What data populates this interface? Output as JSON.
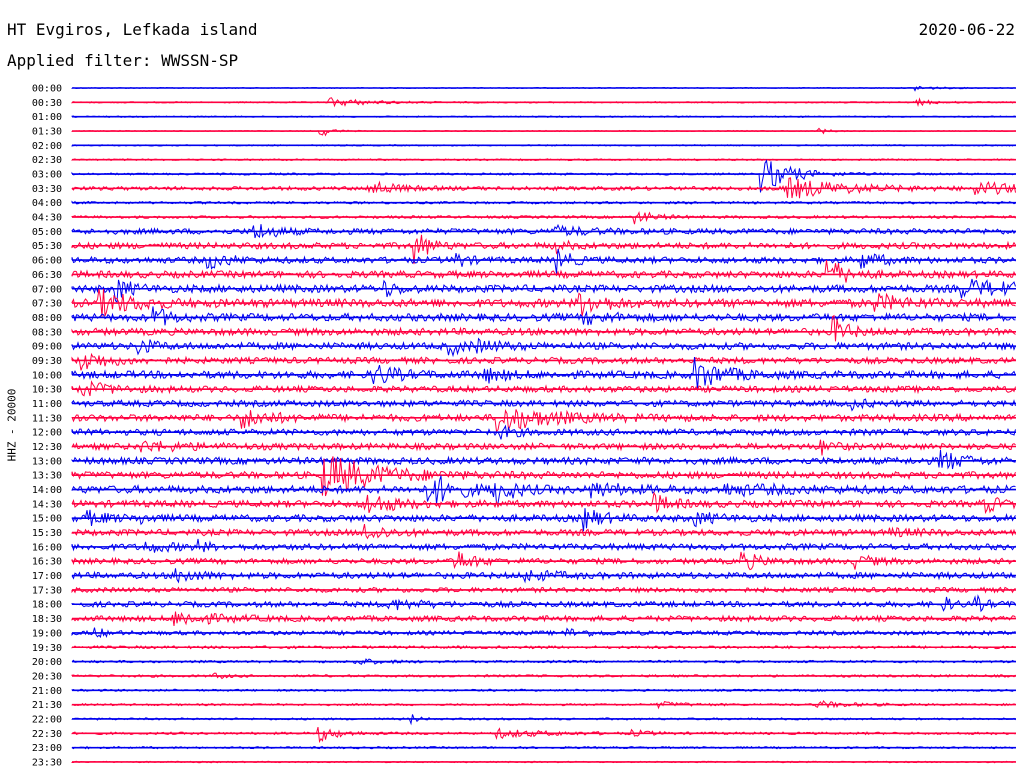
{
  "header": {
    "station": "HT Evgiros, Lefkada island",
    "date": "2020-06-22",
    "filter": "Applied filter: WWSSN-SP",
    "channel": "HHZ - 20000"
  },
  "colors": {
    "even": "#0000ee",
    "odd": "#ff0040"
  },
  "chart_data": {
    "type": "line",
    "title": "HT Evgiros, Lefkada island",
    "xlabel": "",
    "ylabel": "HHZ - 20000",
    "trace_labels": [
      "00:00",
      "00:30",
      "01:00",
      "01:30",
      "02:00",
      "02:30",
      "03:00",
      "03:30",
      "04:00",
      "04:30",
      "05:00",
      "05:30",
      "06:00",
      "06:30",
      "07:00",
      "07:30",
      "08:00",
      "08:30",
      "09:00",
      "09:30",
      "10:00",
      "10:30",
      "11:00",
      "11:30",
      "12:00",
      "12:30",
      "13:00",
      "13:30",
      "14:00",
      "14:30",
      "15:00",
      "15:30",
      "16:00",
      "16:30",
      "17:00",
      "17:30",
      "18:00",
      "18:30",
      "19:00",
      "19:30",
      "20:00",
      "20:30",
      "21:00",
      "21:30",
      "22:00",
      "22:30",
      "23:00",
      "23:30"
    ],
    "trace_minutes": 30,
    "noise_level": [
      0.15,
      0.2,
      0.2,
      0.15,
      0.2,
      0.25,
      0.3,
      0.55,
      0.35,
      0.4,
      0.8,
      0.9,
      0.9,
      1.0,
      1.1,
      1.2,
      1.1,
      1.0,
      1.0,
      0.9,
      1.1,
      0.9,
      0.9,
      1.0,
      0.9,
      0.9,
      1.0,
      1.0,
      1.1,
      1.0,
      1.0,
      0.9,
      0.9,
      0.8,
      0.9,
      0.7,
      0.8,
      0.8,
      0.6,
      0.4,
      0.35,
      0.35,
      0.3,
      0.3,
      0.3,
      0.35,
      0.3,
      0.2
    ],
    "events": [
      {
        "trace": 0,
        "minute": 26.8,
        "amp": 0.4,
        "dur": 0.5
      },
      {
        "trace": 1,
        "minute": 8.2,
        "amp": 0.6,
        "dur": 1.2
      },
      {
        "trace": 1,
        "minute": 26.8,
        "amp": 0.5,
        "dur": 0.5
      },
      {
        "trace": 3,
        "minute": 7.9,
        "amp": 0.9,
        "dur": 0.3
      },
      {
        "trace": 3,
        "minute": 23.7,
        "amp": 0.5,
        "dur": 0.3
      },
      {
        "trace": 6,
        "minute": 21.9,
        "amp": 2.6,
        "dur": 0.9
      },
      {
        "trace": 7,
        "minute": 9.4,
        "amp": 1.1,
        "dur": 0.8
      },
      {
        "trace": 7,
        "minute": 22.6,
        "amp": 1.5,
        "dur": 1.8
      },
      {
        "trace": 7,
        "minute": 28.7,
        "amp": 1.0,
        "dur": 1.2
      },
      {
        "trace": 9,
        "minute": 17.9,
        "amp": 0.9,
        "dur": 0.6
      },
      {
        "trace": 10,
        "minute": 5.8,
        "amp": 1.2,
        "dur": 0.6
      },
      {
        "trace": 10,
        "minute": 15.3,
        "amp": 0.6,
        "dur": 1.0
      },
      {
        "trace": 11,
        "minute": 10.9,
        "amp": 2.3,
        "dur": 0.4
      },
      {
        "trace": 11,
        "minute": 15.3,
        "amp": 0.8,
        "dur": 0.4
      },
      {
        "trace": 12,
        "minute": 4.3,
        "amp": 1.1,
        "dur": 0.6
      },
      {
        "trace": 12,
        "minute": 12.2,
        "amp": 1.1,
        "dur": 0.3
      },
      {
        "trace": 12,
        "minute": 15.4,
        "amp": 1.6,
        "dur": 0.4
      },
      {
        "trace": 12,
        "minute": 25.0,
        "amp": 1.2,
        "dur": 0.6
      },
      {
        "trace": 13,
        "minute": 24.0,
        "amp": 2.4,
        "dur": 0.5
      },
      {
        "trace": 14,
        "minute": 1.4,
        "amp": 1.6,
        "dur": 0.4
      },
      {
        "trace": 14,
        "minute": 9.9,
        "amp": 1.0,
        "dur": 0.4
      },
      {
        "trace": 14,
        "minute": 28.3,
        "amp": 1.0,
        "dur": 2.0
      },
      {
        "trace": 15,
        "minute": 0.9,
        "amp": 1.6,
        "dur": 1.0
      },
      {
        "trace": 15,
        "minute": 16.1,
        "amp": 1.7,
        "dur": 0.7
      },
      {
        "trace": 15,
        "minute": 25.5,
        "amp": 1.0,
        "dur": 0.9
      },
      {
        "trace": 16,
        "minute": 2.6,
        "amp": 1.3,
        "dur": 0.5
      },
      {
        "trace": 16,
        "minute": 16.3,
        "amp": 0.6,
        "dur": 1.0
      },
      {
        "trace": 17,
        "minute": 24.2,
        "amp": 2.0,
        "dur": 0.4
      },
      {
        "trace": 18,
        "minute": 2.1,
        "amp": 1.2,
        "dur": 0.4
      },
      {
        "trace": 18,
        "minute": 12.0,
        "amp": 1.1,
        "dur": 0.4
      },
      {
        "trace": 18,
        "minute": 12.9,
        "amp": 0.7,
        "dur": 0.8
      },
      {
        "trace": 19,
        "minute": 0.3,
        "amp": 1.4,
        "dur": 0.7
      },
      {
        "trace": 20,
        "minute": 9.6,
        "amp": 1.5,
        "dur": 0.6
      },
      {
        "trace": 20,
        "minute": 13.1,
        "amp": 0.9,
        "dur": 0.6
      },
      {
        "trace": 20,
        "minute": 19.7,
        "amp": 2.4,
        "dur": 0.8
      },
      {
        "trace": 21,
        "minute": 0.3,
        "amp": 1.0,
        "dur": 0.8
      },
      {
        "trace": 22,
        "minute": 24.8,
        "amp": 0.6,
        "dur": 0.4
      },
      {
        "trace": 23,
        "minute": 5.4,
        "amp": 1.3,
        "dur": 0.8
      },
      {
        "trace": 23,
        "minute": 13.5,
        "amp": 1.9,
        "dur": 1.5
      },
      {
        "trace": 24,
        "minute": 13.6,
        "amp": 0.7,
        "dur": 0.5
      },
      {
        "trace": 25,
        "minute": 2.2,
        "amp": 0.6,
        "dur": 1.5
      },
      {
        "trace": 25,
        "minute": 23.8,
        "amp": 1.0,
        "dur": 0.4
      },
      {
        "trace": 26,
        "minute": 27.6,
        "amp": 1.4,
        "dur": 0.6
      },
      {
        "trace": 27,
        "minute": 8.0,
        "amp": 3.0,
        "dur": 1.5
      },
      {
        "trace": 28,
        "minute": 11.3,
        "amp": 2.5,
        "dur": 0.8
      },
      {
        "trace": 28,
        "minute": 13.4,
        "amp": 2.0,
        "dur": 0.6
      },
      {
        "trace": 28,
        "minute": 16.5,
        "amp": 0.9,
        "dur": 1.0
      },
      {
        "trace": 28,
        "minute": 20.7,
        "amp": 0.6,
        "dur": 2.0
      },
      {
        "trace": 29,
        "minute": 9.3,
        "amp": 1.5,
        "dur": 0.8
      },
      {
        "trace": 29,
        "minute": 18.5,
        "amp": 1.2,
        "dur": 0.5
      },
      {
        "trace": 29,
        "minute": 29.0,
        "amp": 1.2,
        "dur": 0.4
      },
      {
        "trace": 30,
        "minute": 0.5,
        "amp": 0.8,
        "dur": 0.6
      },
      {
        "trace": 30,
        "minute": 2.2,
        "amp": 0.6,
        "dur": 0.3
      },
      {
        "trace": 30,
        "minute": 16.3,
        "amp": 1.4,
        "dur": 0.5
      },
      {
        "trace": 30,
        "minute": 19.8,
        "amp": 0.8,
        "dur": 0.6
      },
      {
        "trace": 31,
        "minute": 9.3,
        "amp": 1.2,
        "dur": 0.6
      },
      {
        "trace": 31,
        "minute": 25.9,
        "amp": 0.4,
        "dur": 1.0
      },
      {
        "trace": 32,
        "minute": 2.3,
        "amp": 0.6,
        "dur": 0.8
      },
      {
        "trace": 32,
        "minute": 4.0,
        "amp": 0.8,
        "dur": 0.3
      },
      {
        "trace": 33,
        "minute": 12.2,
        "amp": 1.5,
        "dur": 0.5
      },
      {
        "trace": 33,
        "minute": 21.3,
        "amp": 1.3,
        "dur": 0.5
      },
      {
        "trace": 33,
        "minute": 24.9,
        "amp": 0.9,
        "dur": 0.5
      },
      {
        "trace": 34,
        "minute": 3.3,
        "amp": 1.0,
        "dur": 0.6
      },
      {
        "trace": 34,
        "minute": 14.4,
        "amp": 0.7,
        "dur": 0.8
      },
      {
        "trace": 36,
        "minute": 10.1,
        "amp": 0.6,
        "dur": 1.0
      },
      {
        "trace": 36,
        "minute": 27.7,
        "amp": 0.9,
        "dur": 0.3
      },
      {
        "trace": 36,
        "minute": 28.7,
        "amp": 1.1,
        "dur": 0.3
      },
      {
        "trace": 37,
        "minute": 3.2,
        "amp": 1.0,
        "dur": 1.2
      },
      {
        "trace": 38,
        "minute": 0.7,
        "amp": 0.8,
        "dur": 0.3
      },
      {
        "trace": 38,
        "minute": 15.7,
        "amp": 0.5,
        "dur": 0.8
      },
      {
        "trace": 40,
        "minute": 9.0,
        "amp": 0.4,
        "dur": 0.8
      },
      {
        "trace": 41,
        "minute": 4.5,
        "amp": 0.5,
        "dur": 0.3
      },
      {
        "trace": 43,
        "minute": 18.6,
        "amp": 0.4,
        "dur": 0.8
      },
      {
        "trace": 43,
        "minute": 23.6,
        "amp": 0.5,
        "dur": 1.0
      },
      {
        "trace": 44,
        "minute": 10.8,
        "amp": 0.6,
        "dur": 0.2
      },
      {
        "trace": 45,
        "minute": 7.8,
        "amp": 1.2,
        "dur": 0.6
      },
      {
        "trace": 45,
        "minute": 13.5,
        "amp": 0.6,
        "dur": 1.5
      },
      {
        "trace": 45,
        "minute": 17.8,
        "amp": 0.4,
        "dur": 0.6
      }
    ]
  }
}
